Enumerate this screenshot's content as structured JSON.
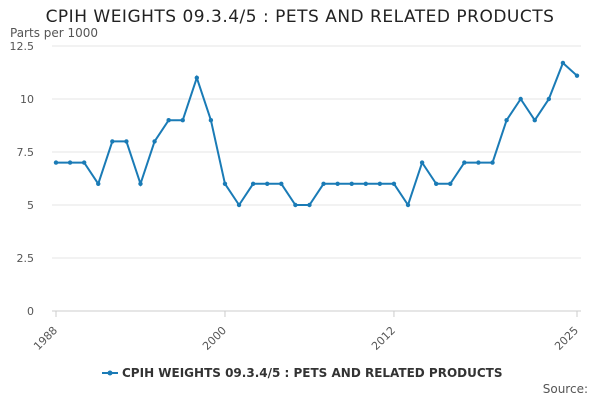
{
  "chart_data": {
    "type": "line",
    "title": "CPIH WEIGHTS 09.3.4/5 : PETS AND RELATED PRODUCTS",
    "ylabel": "Parts per 1000",
    "xlabel": "",
    "source": "Source:",
    "ylim": [
      0,
      12.5
    ],
    "xlim": [
      1988,
      2025
    ],
    "y_ticks": [
      "0",
      "2.5",
      "5",
      "7.5",
      "10",
      "12.5"
    ],
    "y_tick_values": [
      0,
      2.5,
      5,
      7.5,
      10,
      12.5
    ],
    "x_ticks": [
      "1988",
      "2000",
      "2012",
      "2025"
    ],
    "x_tick_values": [
      1988,
      2000,
      2012,
      2025
    ],
    "grid": "horizontal",
    "legend_position": "bottom",
    "series": [
      {
        "name": "CPIH WEIGHTS 09.3.4/5 : PETS AND RELATED PRODUCTS",
        "color": "#1a7bb6",
        "x": [
          1988,
          1989,
          1990,
          1991,
          1992,
          1993,
          1994,
          1995,
          1996,
          1997,
          1998,
          1999,
          2000,
          2001,
          2002,
          2003,
          2004,
          2005,
          2006,
          2007,
          2008,
          2009,
          2010,
          2011,
          2012,
          2013,
          2014,
          2015,
          2016,
          2017,
          2018,
          2019,
          2020,
          2021,
          2022,
          2023,
          2024,
          2025
        ],
        "values": [
          7,
          7,
          7,
          6,
          8,
          8,
          6,
          8,
          9,
          9,
          11,
          9,
          6,
          5,
          6,
          6,
          6,
          5,
          5,
          6,
          6,
          6,
          6,
          6,
          6,
          5,
          7,
          6,
          6,
          7,
          7,
          7,
          9,
          10,
          9,
          10,
          11.7,
          11.1
        ]
      }
    ]
  }
}
